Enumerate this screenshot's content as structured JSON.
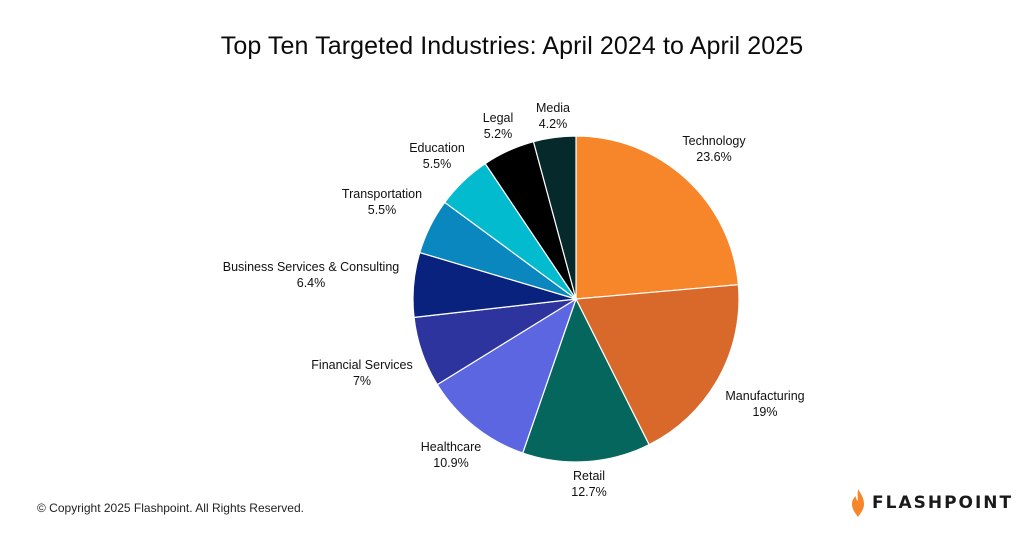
{
  "chart_data": {
    "type": "pie",
    "title": "Top Ten Targeted Industries: April 2024 to April 2025",
    "slices": [
      {
        "label": "Technology",
        "value": 23.6,
        "display": "23.6%",
        "color": "#F7862A"
      },
      {
        "label": "Manufacturing",
        "value": 19,
        "display": "19%",
        "color": "#D9692A"
      },
      {
        "label": "Retail",
        "value": 12.7,
        "display": "12.7%",
        "color": "#04665C"
      },
      {
        "label": "Healthcare",
        "value": 10.9,
        "display": "10.9%",
        "color": "#5B66E0"
      },
      {
        "label": "Financial Services",
        "value": 7,
        "display": "7%",
        "color": "#2E349E"
      },
      {
        "label": "Business Services & Consulting",
        "value": 6.4,
        "display": "6.4%",
        "color": "#08227D"
      },
      {
        "label": "Transportation",
        "value": 5.5,
        "display": "5.5%",
        "color": "#0A87BE"
      },
      {
        "label": "Education",
        "value": 5.5,
        "display": "5.5%",
        "color": "#02BBCE"
      },
      {
        "label": "Legal",
        "value": 5.2,
        "display": "5.2%",
        "color": "#000000"
      },
      {
        "label": "Media",
        "value": 4.2,
        "display": "4.2%",
        "color": "#062A2C"
      }
    ],
    "start": "12 o'clock",
    "direction": "clockwise",
    "legend": "none (labels outside slices)"
  },
  "footer": {
    "copyright": "© Copyright 2025 Flashpoint. All Rights Reserved."
  },
  "brand": {
    "name": "FLASHPOINT",
    "logo_icon": "flame-icon",
    "logo_color": "#F7862A"
  }
}
